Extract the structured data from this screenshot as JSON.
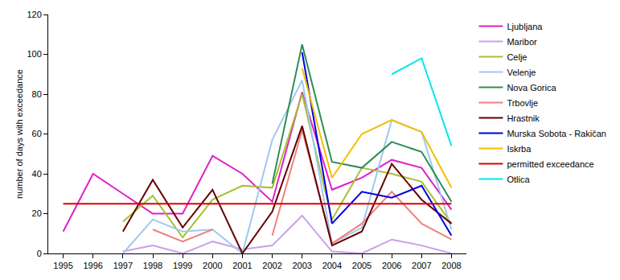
{
  "chart_data": {
    "type": "line",
    "y_label": "number of days with exceedance",
    "categories": [
      "1995",
      "1996",
      "1997",
      "1998",
      "1999",
      "2000",
      "2001",
      "2002",
      "2003",
      "2004",
      "2005",
      "2006",
      "2007",
      "2008"
    ],
    "ylim": [
      0,
      120
    ],
    "yticks": [
      0,
      20,
      40,
      60,
      80,
      100,
      120
    ],
    "grid": false,
    "legend": "right",
    "series": [
      {
        "name": "Ljubljana",
        "color": "#e020c8",
        "values": [
          11,
          40,
          30,
          20,
          20,
          49,
          40,
          26,
          81,
          32,
          38,
          47,
          43,
          22
        ]
      },
      {
        "name": "Maribor",
        "color": "#c8a0e8",
        "values": [
          null,
          null,
          1,
          4,
          0,
          6,
          2,
          4,
          19,
          1,
          0,
          7,
          4,
          0
        ]
      },
      {
        "name": "Celje",
        "color": "#a8c030",
        "values": [
          null,
          null,
          16,
          29,
          8,
          27,
          34,
          33,
          80,
          17,
          43,
          40,
          36,
          15
        ]
      },
      {
        "name": "Velenje",
        "color": "#a0c8f0",
        "values": [
          null,
          null,
          0,
          17,
          11,
          12,
          0,
          57,
          87,
          5,
          13,
          67,
          61,
          12
        ]
      },
      {
        "name": "Nova Gorica",
        "color": "#2e8b57",
        "values": [
          null,
          null,
          null,
          null,
          null,
          null,
          null,
          35,
          105,
          46,
          43,
          56,
          51,
          26
        ]
      },
      {
        "name": "Trbovlje",
        "color": "#f08080",
        "values": [
          null,
          null,
          null,
          12,
          6,
          12,
          null,
          9,
          62,
          5,
          15,
          31,
          15,
          7
        ]
      },
      {
        "name": "Hrastnik",
        "color": "#660000",
        "values": [
          null,
          null,
          11,
          37,
          13,
          32,
          0,
          21,
          64,
          4,
          11,
          45,
          27,
          15
        ]
      },
      {
        "name": "Murska Sobota - Rakičan",
        "color": "#0000e0",
        "values": [
          null,
          null,
          null,
          null,
          null,
          null,
          null,
          null,
          101,
          15,
          31,
          28,
          34,
          9
        ]
      },
      {
        "name": "Iskrba",
        "color": "#f0c000",
        "values": [
          null,
          null,
          null,
          null,
          null,
          null,
          null,
          null,
          93,
          38,
          60,
          67,
          61,
          33
        ]
      },
      {
        "name": "permitted exceedance",
        "color": "#e00000",
        "values": [
          25,
          25,
          25,
          25,
          25,
          25,
          25,
          25,
          25,
          25,
          25,
          25,
          25,
          25
        ]
      },
      {
        "name": "Otlica",
        "color": "#00e8f0",
        "values": [
          null,
          null,
          null,
          null,
          null,
          null,
          null,
          null,
          null,
          null,
          null,
          90,
          98,
          54
        ]
      }
    ]
  }
}
